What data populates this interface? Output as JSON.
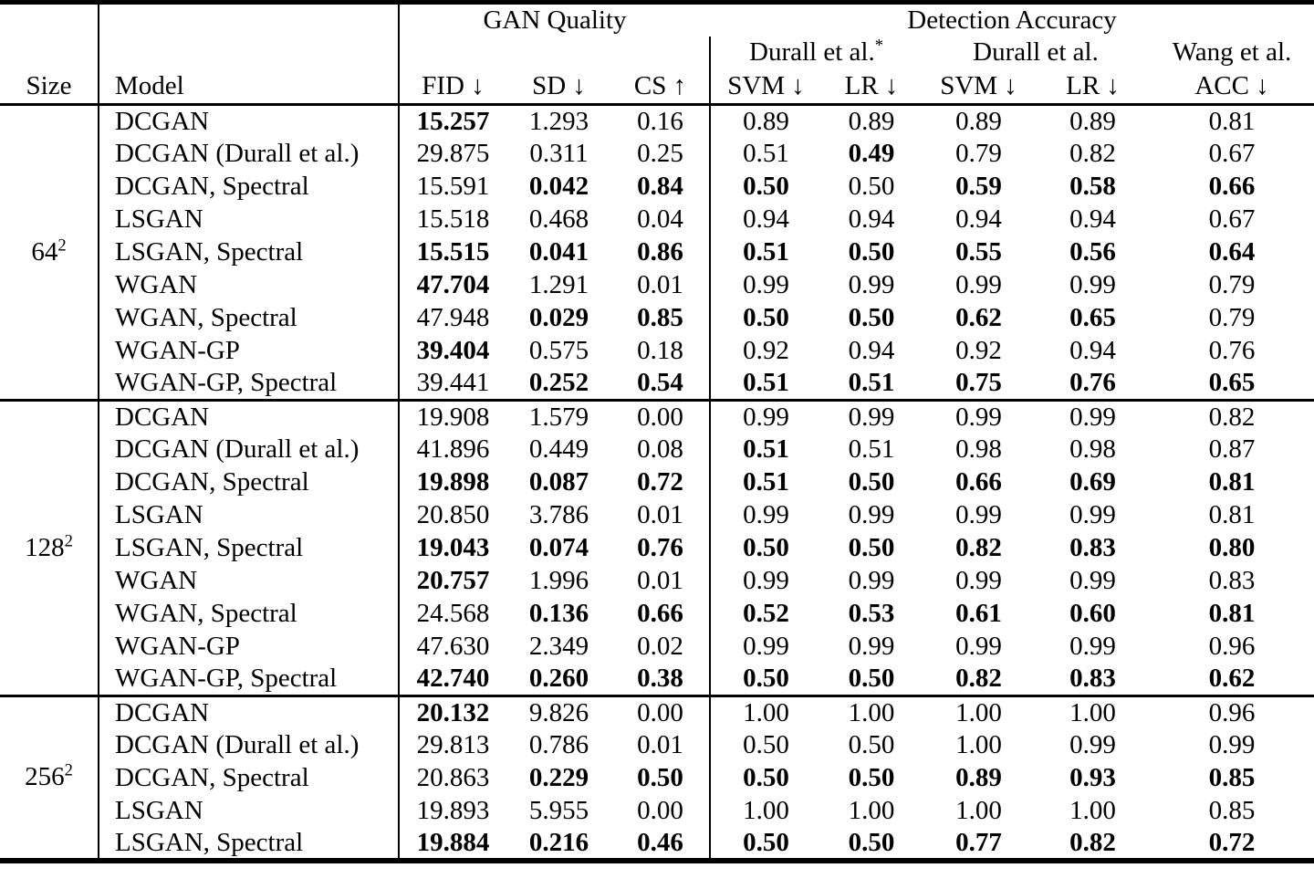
{
  "page": {
    "background": "#ffffff",
    "text_color": "#000000"
  },
  "table": {
    "header": {
      "gan_quality": "GAN Quality",
      "detection_accuracy": "Detection Accuracy",
      "durall_star": "Durall et al.",
      "durall_star_sup": "*",
      "durall": "Durall et al.",
      "wang": "Wang et al.",
      "columns": {
        "size": "Size",
        "model": "Model",
        "fid": "FID ↓",
        "sd": "SD ↓",
        "cs": "CS ↑",
        "svm1": "SVM ↓",
        "lr1": "LR ↓",
        "svm2": "SVM ↓",
        "lr2": "LR ↓",
        "acc": "ACC ↓"
      }
    },
    "groups": [
      {
        "size_base": "64",
        "size_exp": "2",
        "rows": [
          {
            "model": "DCGAN",
            "cells": [
              {
                "v": "15.257",
                "b": true
              },
              {
                "v": "1.293",
                "b": false
              },
              {
                "v": "0.16",
                "b": false
              },
              {
                "v": "0.89",
                "b": false
              },
              {
                "v": "0.89",
                "b": false
              },
              {
                "v": "0.89",
                "b": false
              },
              {
                "v": "0.89",
                "b": false
              },
              {
                "v": "0.81",
                "b": false
              }
            ]
          },
          {
            "model": "DCGAN (Durall et al.)",
            "cells": [
              {
                "v": "29.875",
                "b": false
              },
              {
                "v": "0.311",
                "b": false
              },
              {
                "v": "0.25",
                "b": false
              },
              {
                "v": "0.51",
                "b": false
              },
              {
                "v": "0.49",
                "b": true
              },
              {
                "v": "0.79",
                "b": false
              },
              {
                "v": "0.82",
                "b": false
              },
              {
                "v": "0.67",
                "b": false
              }
            ]
          },
          {
            "model": "DCGAN, Spectral",
            "cells": [
              {
                "v": "15.591",
                "b": false
              },
              {
                "v": "0.042",
                "b": true
              },
              {
                "v": "0.84",
                "b": true
              },
              {
                "v": "0.50",
                "b": true
              },
              {
                "v": "0.50",
                "b": false
              },
              {
                "v": "0.59",
                "b": true
              },
              {
                "v": "0.58",
                "b": true
              },
              {
                "v": "0.66",
                "b": true
              }
            ]
          },
          {
            "model": "LSGAN",
            "cells": [
              {
                "v": "15.518",
                "b": false
              },
              {
                "v": "0.468",
                "b": false
              },
              {
                "v": "0.04",
                "b": false
              },
              {
                "v": "0.94",
                "b": false
              },
              {
                "v": "0.94",
                "b": false
              },
              {
                "v": "0.94",
                "b": false
              },
              {
                "v": "0.94",
                "b": false
              },
              {
                "v": "0.67",
                "b": false
              }
            ]
          },
          {
            "model": "LSGAN, Spectral",
            "cells": [
              {
                "v": "15.515",
                "b": true
              },
              {
                "v": "0.041",
                "b": true
              },
              {
                "v": "0.86",
                "b": true
              },
              {
                "v": "0.51",
                "b": true
              },
              {
                "v": "0.50",
                "b": true
              },
              {
                "v": "0.55",
                "b": true
              },
              {
                "v": "0.56",
                "b": true
              },
              {
                "v": "0.64",
                "b": true
              }
            ]
          },
          {
            "model": "WGAN",
            "cells": [
              {
                "v": "47.704",
                "b": true
              },
              {
                "v": "1.291",
                "b": false
              },
              {
                "v": "0.01",
                "b": false
              },
              {
                "v": "0.99",
                "b": false
              },
              {
                "v": "0.99",
                "b": false
              },
              {
                "v": "0.99",
                "b": false
              },
              {
                "v": "0.99",
                "b": false
              },
              {
                "v": "0.79",
                "b": false
              }
            ]
          },
          {
            "model": "WGAN, Spectral",
            "cells": [
              {
                "v": "47.948",
                "b": false
              },
              {
                "v": "0.029",
                "b": true
              },
              {
                "v": "0.85",
                "b": true
              },
              {
                "v": "0.50",
                "b": true
              },
              {
                "v": "0.50",
                "b": true
              },
              {
                "v": "0.62",
                "b": true
              },
              {
                "v": "0.65",
                "b": true
              },
              {
                "v": "0.79",
                "b": false
              }
            ]
          },
          {
            "model": "WGAN-GP",
            "cells": [
              {
                "v": "39.404",
                "b": true
              },
              {
                "v": "0.575",
                "b": false
              },
              {
                "v": "0.18",
                "b": false
              },
              {
                "v": "0.92",
                "b": false
              },
              {
                "v": "0.94",
                "b": false
              },
              {
                "v": "0.92",
                "b": false
              },
              {
                "v": "0.94",
                "b": false
              },
              {
                "v": "0.76",
                "b": false
              }
            ]
          },
          {
            "model": "WGAN-GP, Spectral",
            "cells": [
              {
                "v": "39.441",
                "b": false
              },
              {
                "v": "0.252",
                "b": true
              },
              {
                "v": "0.54",
                "b": true
              },
              {
                "v": "0.51",
                "b": true
              },
              {
                "v": "0.51",
                "b": true
              },
              {
                "v": "0.75",
                "b": true
              },
              {
                "v": "0.76",
                "b": true
              },
              {
                "v": "0.65",
                "b": true
              }
            ]
          }
        ]
      },
      {
        "size_base": "128",
        "size_exp": "2",
        "rows": [
          {
            "model": "DCGAN",
            "cells": [
              {
                "v": "19.908",
                "b": false
              },
              {
                "v": "1.579",
                "b": false
              },
              {
                "v": "0.00",
                "b": false
              },
              {
                "v": "0.99",
                "b": false
              },
              {
                "v": "0.99",
                "b": false
              },
              {
                "v": "0.99",
                "b": false
              },
              {
                "v": "0.99",
                "b": false
              },
              {
                "v": "0.82",
                "b": false
              }
            ]
          },
          {
            "model": "DCGAN (Durall et al.)",
            "cells": [
              {
                "v": "41.896",
                "b": false
              },
              {
                "v": "0.449",
                "b": false
              },
              {
                "v": "0.08",
                "b": false
              },
              {
                "v": "0.51",
                "b": true
              },
              {
                "v": "0.51",
                "b": false
              },
              {
                "v": "0.98",
                "b": false
              },
              {
                "v": "0.98",
                "b": false
              },
              {
                "v": "0.87",
                "b": false
              }
            ]
          },
          {
            "model": "DCGAN, Spectral",
            "cells": [
              {
                "v": "19.898",
                "b": true
              },
              {
                "v": "0.087",
                "b": true
              },
              {
                "v": "0.72",
                "b": true
              },
              {
                "v": "0.51",
                "b": true
              },
              {
                "v": "0.50",
                "b": true
              },
              {
                "v": "0.66",
                "b": true
              },
              {
                "v": "0.69",
                "b": true
              },
              {
                "v": "0.81",
                "b": true
              }
            ]
          },
          {
            "model": "LSGAN",
            "cells": [
              {
                "v": "20.850",
                "b": false
              },
              {
                "v": "3.786",
                "b": false
              },
              {
                "v": "0.01",
                "b": false
              },
              {
                "v": "0.99",
                "b": false
              },
              {
                "v": "0.99",
                "b": false
              },
              {
                "v": "0.99",
                "b": false
              },
              {
                "v": "0.99",
                "b": false
              },
              {
                "v": "0.81",
                "b": false
              }
            ]
          },
          {
            "model": "LSGAN, Spectral",
            "cells": [
              {
                "v": "19.043",
                "b": true
              },
              {
                "v": "0.074",
                "b": true
              },
              {
                "v": "0.76",
                "b": true
              },
              {
                "v": "0.50",
                "b": true
              },
              {
                "v": "0.50",
                "b": true
              },
              {
                "v": "0.82",
                "b": true
              },
              {
                "v": "0.83",
                "b": true
              },
              {
                "v": "0.80",
                "b": true
              }
            ]
          },
          {
            "model": "WGAN",
            "cells": [
              {
                "v": "20.757",
                "b": true
              },
              {
                "v": "1.996",
                "b": false
              },
              {
                "v": "0.01",
                "b": false
              },
              {
                "v": "0.99",
                "b": false
              },
              {
                "v": "0.99",
                "b": false
              },
              {
                "v": "0.99",
                "b": false
              },
              {
                "v": "0.99",
                "b": false
              },
              {
                "v": "0.83",
                "b": false
              }
            ]
          },
          {
            "model": "WGAN, Spectral",
            "cells": [
              {
                "v": "24.568",
                "b": false
              },
              {
                "v": "0.136",
                "b": true
              },
              {
                "v": "0.66",
                "b": true
              },
              {
                "v": "0.52",
                "b": true
              },
              {
                "v": "0.53",
                "b": true
              },
              {
                "v": "0.61",
                "b": true
              },
              {
                "v": "0.60",
                "b": true
              },
              {
                "v": "0.81",
                "b": true
              }
            ]
          },
          {
            "model": "WGAN-GP",
            "cells": [
              {
                "v": "47.630",
                "b": false
              },
              {
                "v": "2.349",
                "b": false
              },
              {
                "v": "0.02",
                "b": false
              },
              {
                "v": "0.99",
                "b": false
              },
              {
                "v": "0.99",
                "b": false
              },
              {
                "v": "0.99",
                "b": false
              },
              {
                "v": "0.99",
                "b": false
              },
              {
                "v": "0.96",
                "b": false
              }
            ]
          },
          {
            "model": "WGAN-GP, Spectral",
            "cells": [
              {
                "v": "42.740",
                "b": true
              },
              {
                "v": "0.260",
                "b": true
              },
              {
                "v": "0.38",
                "b": true
              },
              {
                "v": "0.50",
                "b": true
              },
              {
                "v": "0.50",
                "b": true
              },
              {
                "v": "0.82",
                "b": true
              },
              {
                "v": "0.83",
                "b": true
              },
              {
                "v": "0.62",
                "b": true
              }
            ]
          }
        ]
      },
      {
        "size_base": "256",
        "size_exp": "2",
        "rows": [
          {
            "model": "DCGAN",
            "cells": [
              {
                "v": "20.132",
                "b": true
              },
              {
                "v": "9.826",
                "b": false
              },
              {
                "v": "0.00",
                "b": false
              },
              {
                "v": "1.00",
                "b": false
              },
              {
                "v": "1.00",
                "b": false
              },
              {
                "v": "1.00",
                "b": false
              },
              {
                "v": "1.00",
                "b": false
              },
              {
                "v": "0.96",
                "b": false
              }
            ]
          },
          {
            "model": "DCGAN (Durall et al.)",
            "cells": [
              {
                "v": "29.813",
                "b": false
              },
              {
                "v": "0.786",
                "b": false
              },
              {
                "v": "0.01",
                "b": false
              },
              {
                "v": "0.50",
                "b": false
              },
              {
                "v": "0.50",
                "b": false
              },
              {
                "v": "1.00",
                "b": false
              },
              {
                "v": "0.99",
                "b": false
              },
              {
                "v": "0.99",
                "b": false
              }
            ]
          },
          {
            "model": "DCGAN, Spectral",
            "cells": [
              {
                "v": "20.863",
                "b": false
              },
              {
                "v": "0.229",
                "b": true
              },
              {
                "v": "0.50",
                "b": true
              },
              {
                "v": "0.50",
                "b": true
              },
              {
                "v": "0.50",
                "b": true
              },
              {
                "v": "0.89",
                "b": true
              },
              {
                "v": "0.93",
                "b": true
              },
              {
                "v": "0.85",
                "b": true
              }
            ]
          },
          {
            "model": "LSGAN",
            "cells": [
              {
                "v": "19.893",
                "b": false
              },
              {
                "v": "5.955",
                "b": false
              },
              {
                "v": "0.00",
                "b": false
              },
              {
                "v": "1.00",
                "b": false
              },
              {
                "v": "1.00",
                "b": false
              },
              {
                "v": "1.00",
                "b": false
              },
              {
                "v": "1.00",
                "b": false
              },
              {
                "v": "0.85",
                "b": false
              }
            ]
          },
          {
            "model": "LSGAN, Spectral",
            "cells": [
              {
                "v": "19.884",
                "b": true
              },
              {
                "v": "0.216",
                "b": true
              },
              {
                "v": "0.46",
                "b": true
              },
              {
                "v": "0.50",
                "b": true
              },
              {
                "v": "0.50",
                "b": true
              },
              {
                "v": "0.77",
                "b": true
              },
              {
                "v": "0.82",
                "b": true
              },
              {
                "v": "0.72",
                "b": true
              }
            ]
          }
        ]
      }
    ]
  }
}
